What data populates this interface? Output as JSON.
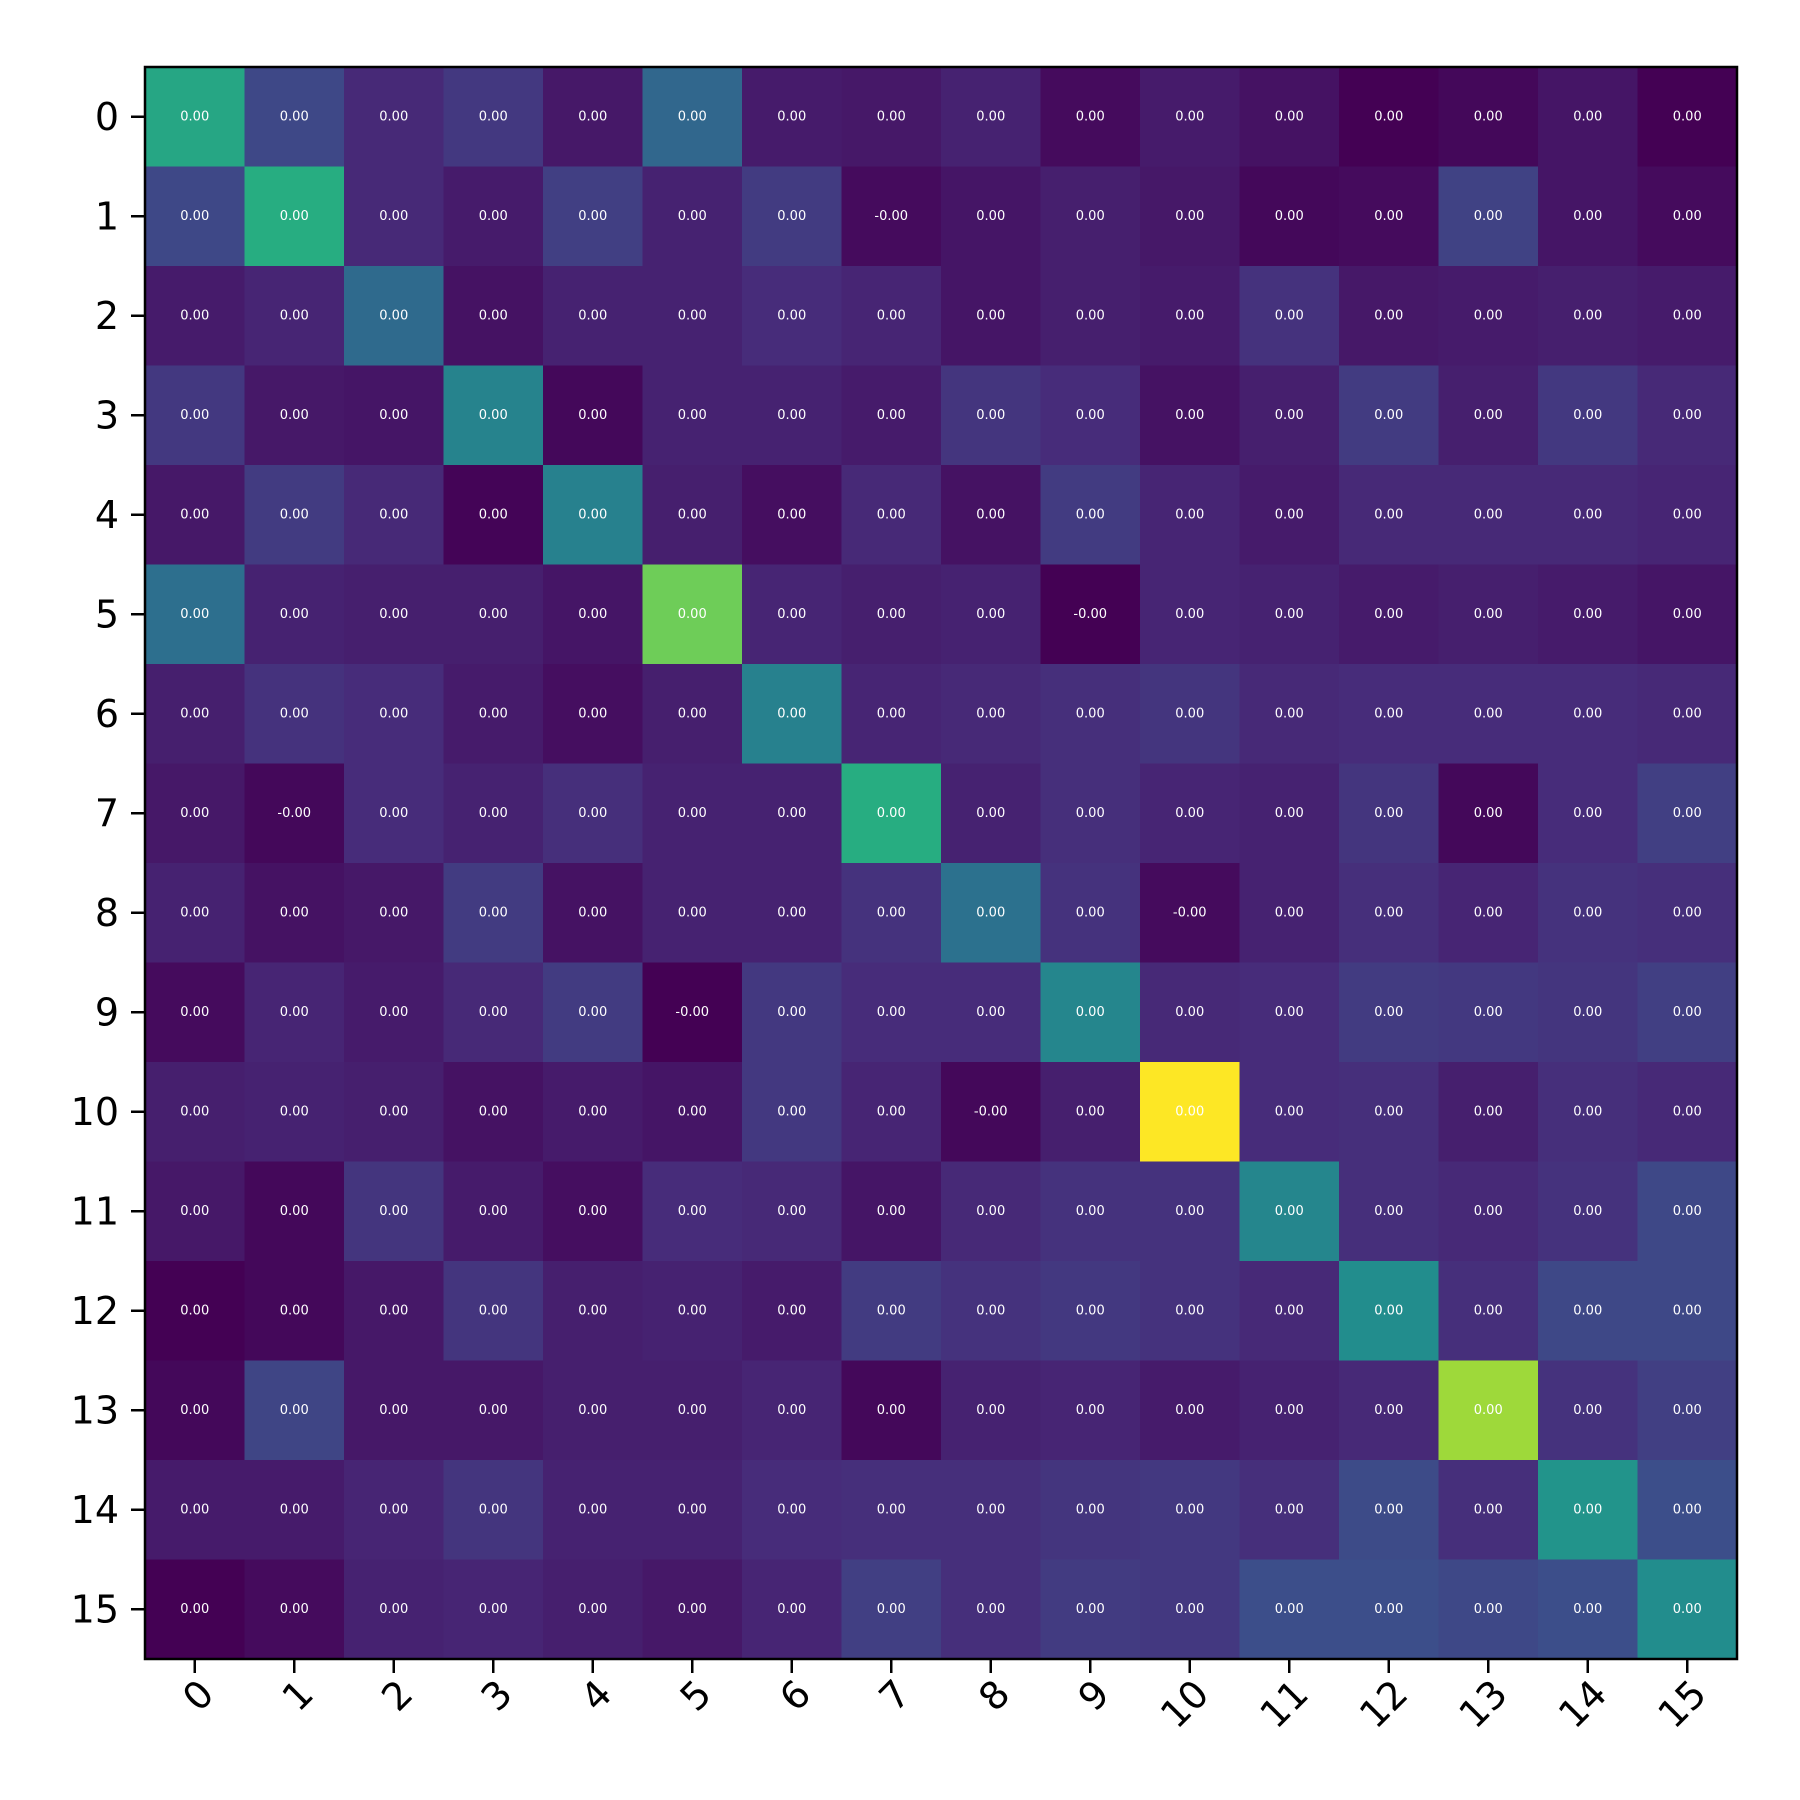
{
  "chart_data": {
    "type": "heatmap",
    "title": "",
    "xlabel": "",
    "ylabel": "",
    "colormap": "viridis",
    "x_categories": [
      "0",
      "1",
      "2",
      "3",
      "4",
      "5",
      "6",
      "7",
      "8",
      "9",
      "10",
      "11",
      "12",
      "13",
      "14",
      "15"
    ],
    "y_categories": [
      "0",
      "1",
      "2",
      "3",
      "4",
      "5",
      "6",
      "7",
      "8",
      "9",
      "10",
      "11",
      "12",
      "13",
      "14",
      "15"
    ],
    "cell_labels": [
      [
        "0.00",
        "0.00",
        "0.00",
        "0.00",
        "0.00",
        "0.00",
        "0.00",
        "0.00",
        "0.00",
        "0.00",
        "0.00",
        "0.00",
        "0.00",
        "0.00",
        "0.00",
        "0.00"
      ],
      [
        "0.00",
        "0.00",
        "0.00",
        "0.00",
        "0.00",
        "0.00",
        "0.00",
        "-0.00",
        "0.00",
        "0.00",
        "0.00",
        "0.00",
        "0.00",
        "0.00",
        "0.00",
        "0.00"
      ],
      [
        "0.00",
        "0.00",
        "0.00",
        "0.00",
        "0.00",
        "0.00",
        "0.00",
        "0.00",
        "0.00",
        "0.00",
        "0.00",
        "0.00",
        "0.00",
        "0.00",
        "0.00",
        "0.00"
      ],
      [
        "0.00",
        "0.00",
        "0.00",
        "0.00",
        "0.00",
        "0.00",
        "0.00",
        "0.00",
        "0.00",
        "0.00",
        "0.00",
        "0.00",
        "0.00",
        "0.00",
        "0.00",
        "0.00"
      ],
      [
        "0.00",
        "0.00",
        "0.00",
        "0.00",
        "0.00",
        "0.00",
        "0.00",
        "0.00",
        "0.00",
        "0.00",
        "0.00",
        "0.00",
        "0.00",
        "0.00",
        "0.00",
        "0.00"
      ],
      [
        "0.00",
        "0.00",
        "0.00",
        "0.00",
        "0.00",
        "0.00",
        "0.00",
        "0.00",
        "0.00",
        "-0.00",
        "0.00",
        "0.00",
        "0.00",
        "0.00",
        "0.00",
        "0.00"
      ],
      [
        "0.00",
        "0.00",
        "0.00",
        "0.00",
        "0.00",
        "0.00",
        "0.00",
        "0.00",
        "0.00",
        "0.00",
        "0.00",
        "0.00",
        "0.00",
        "0.00",
        "0.00",
        "0.00"
      ],
      [
        "0.00",
        "-0.00",
        "0.00",
        "0.00",
        "0.00",
        "0.00",
        "0.00",
        "0.00",
        "0.00",
        "0.00",
        "0.00",
        "0.00",
        "0.00",
        "0.00",
        "0.00",
        "0.00"
      ],
      [
        "0.00",
        "0.00",
        "0.00",
        "0.00",
        "0.00",
        "0.00",
        "0.00",
        "0.00",
        "0.00",
        "0.00",
        "-0.00",
        "0.00",
        "0.00",
        "0.00",
        "0.00",
        "0.00"
      ],
      [
        "0.00",
        "0.00",
        "0.00",
        "0.00",
        "0.00",
        "-0.00",
        "0.00",
        "0.00",
        "0.00",
        "0.00",
        "0.00",
        "0.00",
        "0.00",
        "0.00",
        "0.00",
        "0.00"
      ],
      [
        "0.00",
        "0.00",
        "0.00",
        "0.00",
        "0.00",
        "0.00",
        "0.00",
        "0.00",
        "-0.00",
        "0.00",
        "0.00",
        "0.00",
        "0.00",
        "0.00",
        "0.00",
        "0.00"
      ],
      [
        "0.00",
        "0.00",
        "0.00",
        "0.00",
        "0.00",
        "0.00",
        "0.00",
        "0.00",
        "0.00",
        "0.00",
        "0.00",
        "0.00",
        "0.00",
        "0.00",
        "0.00",
        "0.00"
      ],
      [
        "0.00",
        "0.00",
        "0.00",
        "0.00",
        "0.00",
        "0.00",
        "0.00",
        "0.00",
        "0.00",
        "0.00",
        "0.00",
        "0.00",
        "0.00",
        "0.00",
        "0.00",
        "0.00"
      ],
      [
        "0.00",
        "0.00",
        "0.00",
        "0.00",
        "0.00",
        "0.00",
        "0.00",
        "0.00",
        "0.00",
        "0.00",
        "0.00",
        "0.00",
        "0.00",
        "0.00",
        "0.00",
        "0.00"
      ],
      [
        "0.00",
        "0.00",
        "0.00",
        "0.00",
        "0.00",
        "0.00",
        "0.00",
        "0.00",
        "0.00",
        "0.00",
        "0.00",
        "0.00",
        "0.00",
        "0.00",
        "0.00",
        "0.00"
      ],
      [
        "0.00",
        "0.00",
        "0.00",
        "0.00",
        "0.00",
        "0.00",
        "0.00",
        "0.00",
        "0.00",
        "0.00",
        "0.00",
        "0.00",
        "0.00",
        "0.00",
        "0.00",
        "0.00"
      ]
    ],
    "color_levels": [
      [
        0.6,
        0.22,
        0.12,
        0.17,
        0.07,
        0.34,
        0.08,
        0.07,
        0.1,
        0.03,
        0.08,
        0.05,
        0.0,
        0.02,
        0.06,
        0.0
      ],
      [
        0.22,
        0.63,
        0.12,
        0.08,
        0.19,
        0.1,
        0.18,
        0.03,
        0.06,
        0.09,
        0.07,
        0.02,
        0.03,
        0.2,
        0.06,
        0.03
      ],
      [
        0.08,
        0.11,
        0.35,
        0.05,
        0.1,
        0.1,
        0.13,
        0.11,
        0.06,
        0.09,
        0.08,
        0.15,
        0.07,
        0.08,
        0.09,
        0.08
      ],
      [
        0.17,
        0.07,
        0.06,
        0.45,
        0.02,
        0.1,
        0.1,
        0.08,
        0.16,
        0.13,
        0.05,
        0.09,
        0.18,
        0.09,
        0.17,
        0.12
      ],
      [
        0.07,
        0.18,
        0.12,
        0.01,
        0.44,
        0.09,
        0.04,
        0.12,
        0.05,
        0.18,
        0.11,
        0.08,
        0.12,
        0.12,
        0.12,
        0.11
      ],
      [
        0.37,
        0.1,
        0.09,
        0.09,
        0.06,
        0.78,
        0.11,
        0.09,
        0.1,
        0.0,
        0.11,
        0.1,
        0.08,
        0.09,
        0.08,
        0.06
      ],
      [
        0.09,
        0.15,
        0.13,
        0.08,
        0.04,
        0.09,
        0.44,
        0.11,
        0.12,
        0.14,
        0.16,
        0.12,
        0.13,
        0.13,
        0.13,
        0.12
      ],
      [
        0.07,
        0.02,
        0.13,
        0.1,
        0.14,
        0.1,
        0.1,
        0.63,
        0.1,
        0.14,
        0.11,
        0.1,
        0.16,
        0.02,
        0.13,
        0.19
      ],
      [
        0.1,
        0.05,
        0.07,
        0.18,
        0.05,
        0.1,
        0.1,
        0.15,
        0.38,
        0.15,
        0.03,
        0.1,
        0.14,
        0.11,
        0.15,
        0.14
      ],
      [
        0.03,
        0.11,
        0.08,
        0.12,
        0.18,
        0.0,
        0.17,
        0.13,
        0.13,
        0.46,
        0.12,
        0.13,
        0.18,
        0.17,
        0.16,
        0.19
      ],
      [
        0.09,
        0.1,
        0.09,
        0.05,
        0.08,
        0.06,
        0.17,
        0.11,
        0.02,
        0.09,
        1.0,
        0.13,
        0.14,
        0.09,
        0.14,
        0.12
      ],
      [
        0.07,
        0.02,
        0.16,
        0.08,
        0.04,
        0.13,
        0.12,
        0.06,
        0.12,
        0.15,
        0.15,
        0.46,
        0.14,
        0.12,
        0.15,
        0.22
      ],
      [
        0.0,
        0.02,
        0.07,
        0.16,
        0.09,
        0.1,
        0.08,
        0.18,
        0.15,
        0.17,
        0.15,
        0.12,
        0.49,
        0.14,
        0.22,
        0.22
      ],
      [
        0.02,
        0.21,
        0.07,
        0.07,
        0.09,
        0.09,
        0.11,
        0.02,
        0.1,
        0.11,
        0.08,
        0.1,
        0.12,
        0.86,
        0.15,
        0.19
      ],
      [
        0.08,
        0.08,
        0.11,
        0.16,
        0.1,
        0.1,
        0.13,
        0.14,
        0.14,
        0.16,
        0.17,
        0.14,
        0.23,
        0.14,
        0.52,
        0.24
      ],
      [
        0.0,
        0.03,
        0.1,
        0.11,
        0.09,
        0.07,
        0.11,
        0.19,
        0.14,
        0.18,
        0.17,
        0.24,
        0.24,
        0.22,
        0.24,
        0.49
      ]
    ]
  }
}
